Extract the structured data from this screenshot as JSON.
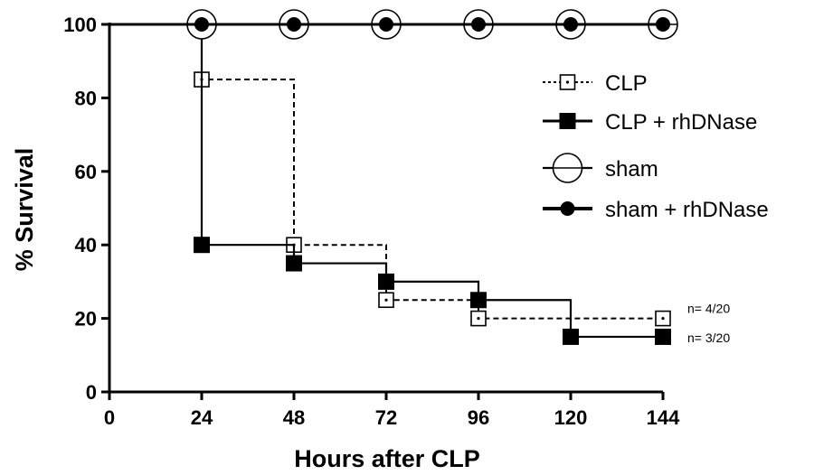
{
  "chart_data": {
    "type": "line",
    "subtype": "kaplan-meier-step",
    "title": "",
    "xlabel": "Hours after CLP",
    "ylabel": "% Survival",
    "xlim": [
      0,
      144
    ],
    "ylim": [
      0,
      100
    ],
    "xticks": [
      "0",
      "24",
      "48",
      "72",
      "96",
      "120",
      "144"
    ],
    "yticks": [
      "0",
      "20",
      "40",
      "60",
      "80",
      "100"
    ],
    "grid": false,
    "legend_position": "right",
    "series": [
      {
        "name": "CLP",
        "line_style": "dashed",
        "marker": "open-square-dot",
        "color": "#000000",
        "x": [
          0,
          24,
          48,
          72,
          96,
          144
        ],
        "y": [
          100,
          85,
          40,
          25,
          20,
          20
        ],
        "marker_x": [
          24,
          48,
          72,
          96,
          144
        ],
        "marker_y": [
          85,
          40,
          25,
          20,
          20
        ]
      },
      {
        "name": "CLP + rhDNase",
        "line_style": "solid",
        "marker": "filled-square",
        "color": "#000000",
        "x": [
          0,
          24,
          48,
          72,
          96,
          120,
          144
        ],
        "y": [
          100,
          40,
          35,
          30,
          25,
          15,
          15
        ],
        "marker_x": [
          24,
          48,
          72,
          96,
          120,
          144
        ],
        "marker_y": [
          40,
          35,
          30,
          25,
          15,
          15
        ]
      },
      {
        "name": "sham",
        "line_style": "solid",
        "marker": "open-circle-line",
        "color": "#000000",
        "x": [
          0,
          24,
          48,
          72,
          96,
          120,
          144
        ],
        "y": [
          100,
          100,
          100,
          100,
          100,
          100,
          100
        ],
        "marker_x": [
          24,
          48,
          72,
          96,
          120,
          144
        ],
        "marker_y": [
          100,
          100,
          100,
          100,
          100,
          100
        ]
      },
      {
        "name": "sham + rhDNase",
        "line_style": "solid-bold",
        "marker": "filled-circle",
        "color": "#000000",
        "x": [
          0,
          24,
          48,
          72,
          96,
          120,
          144
        ],
        "y": [
          100,
          100,
          100,
          100,
          100,
          100,
          100
        ],
        "marker_x": [
          24,
          48,
          72,
          96,
          120,
          144
        ],
        "marker_y": [
          100,
          100,
          100,
          100,
          100,
          100
        ]
      }
    ],
    "annotations": [
      {
        "text": "n= 4/20",
        "series": "CLP"
      },
      {
        "text": "n= 3/20",
        "series": "CLP + rhDNase"
      }
    ]
  }
}
